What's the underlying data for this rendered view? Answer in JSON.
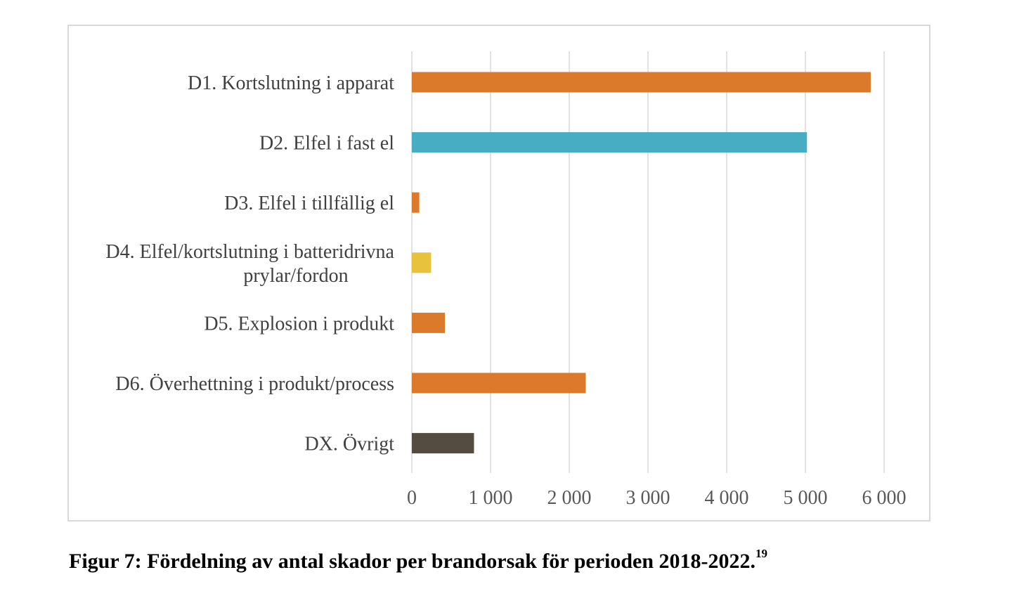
{
  "chart_data": {
    "type": "bar",
    "orientation": "horizontal",
    "categories": [
      "D1. Kortslutning i apparat",
      "D2. Elfel i fast el",
      "D3. Elfel i tillfällig el",
      "D4. Elfel/kortslutning i batteridrivna prylar/fordon",
      "D5. Explosion i produkt",
      "D6. Överhettning i produkt/process",
      "DX. Övrigt"
    ],
    "category_lines": [
      [
        "D1. Kortslutning i apparat"
      ],
      [
        "D2. Elfel i fast el"
      ],
      [
        "D3. Elfel i tillfällig el"
      ],
      [
        "D4. Elfel/kortslutning i batteridrivna",
        "prylar/fordon"
      ],
      [
        "D5. Explosion i produkt"
      ],
      [
        "D6. Överhettning i produkt/process"
      ],
      [
        "DX. Övrigt"
      ]
    ],
    "values": [
      5830,
      5020,
      95,
      245,
      420,
      2210,
      790
    ],
    "colors": [
      "#dc7a2c",
      "#46adc2",
      "#dc7a2c",
      "#e8c23a",
      "#dc7a2c",
      "#dc7a2c",
      "#544c40"
    ],
    "xlim": [
      0,
      6000
    ],
    "xticks": [
      0,
      1000,
      2000,
      3000,
      4000,
      5000,
      6000
    ],
    "xtick_labels": [
      "0",
      "1 000",
      "2 000",
      "3 000",
      "4 000",
      "5 000",
      "6 000"
    ],
    "grid": true,
    "title": "",
    "xlabel": "",
    "ylabel": ""
  },
  "caption": {
    "text": "Figur 7: Fördelning av antal skador per brandorsak för perioden 2018-2022.",
    "footnote": "19"
  }
}
